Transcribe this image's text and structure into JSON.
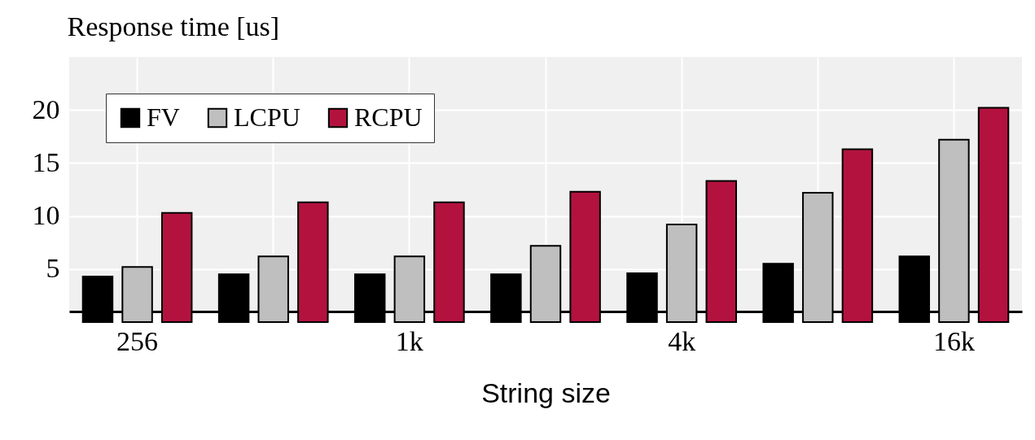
{
  "chart_data": {
    "type": "bar",
    "ylabel": "Response time [us]",
    "xlabel": "String size",
    "categories": [
      "256",
      null,
      "1k",
      null,
      "4k",
      null,
      "16k"
    ],
    "series": [
      {
        "name": "FV",
        "color": "#000000",
        "values": [
          4.3,
          4.5,
          4.5,
          4.5,
          4.6,
          5.5,
          6.2
        ]
      },
      {
        "name": "LCPU",
        "color": "#bfbfbf",
        "values": [
          5.2,
          6.2,
          6.2,
          7.2,
          9.2,
          12.2,
          17.2
        ]
      },
      {
        "name": "RCPU",
        "color": "#b3123f",
        "values": [
          10.3,
          11.3,
          11.3,
          12.3,
          13.3,
          16.3,
          20.2
        ]
      }
    ],
    "ylim": [
      1,
      25
    ],
    "yticks": [
      5,
      10,
      15,
      20
    ],
    "grid": true,
    "legend": "top left"
  }
}
